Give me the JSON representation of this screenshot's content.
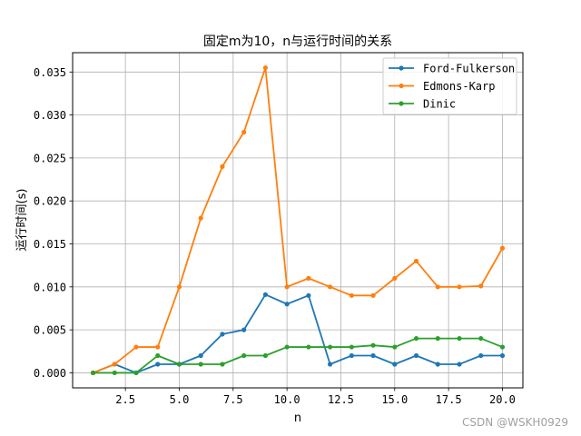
{
  "chart_data": {
    "type": "line",
    "title": "固定m为10，n与运行时间的关系",
    "xlabel": "n",
    "ylabel": "运行时间(s)",
    "xlim": [
      0.05,
      20.95
    ],
    "ylim": [
      -0.00175,
      0.03725
    ],
    "xticks": [
      2.5,
      5.0,
      7.5,
      10.0,
      12.5,
      15.0,
      17.5,
      20.0
    ],
    "xtick_labels": [
      "2.5",
      "5.0",
      "7.5",
      "10.0",
      "12.5",
      "15.0",
      "17.5",
      "20.0"
    ],
    "yticks": [
      0.0,
      0.005,
      0.01,
      0.015,
      0.02,
      0.025,
      0.03,
      0.035
    ],
    "ytick_labels": [
      "0.000",
      "0.005",
      "0.010",
      "0.015",
      "0.020",
      "0.025",
      "0.030",
      "0.035"
    ],
    "grid": true,
    "legend_position": "top-right",
    "x": [
      1,
      2,
      3,
      4,
      5,
      6,
      7,
      8,
      9,
      10,
      11,
      12,
      13,
      14,
      15,
      16,
      17,
      18,
      19,
      20
    ],
    "series": [
      {
        "name": "Ford-Fulkerson",
        "color": "#1f77b4",
        "values": [
          0.0,
          0.001,
          0.0,
          0.001,
          0.001,
          0.002,
          0.0045,
          0.005,
          0.0091,
          0.008,
          0.009,
          0.001,
          0.002,
          0.002,
          0.001,
          0.002,
          0.001,
          0.001,
          0.002,
          0.002
        ]
      },
      {
        "name": "Edmons-Karp",
        "color": "#ff7f0e",
        "values": [
          0.0,
          0.001,
          0.003,
          0.003,
          0.01,
          0.018,
          0.024,
          0.028,
          0.0355,
          0.01,
          0.011,
          0.01,
          0.009,
          0.009,
          0.011,
          0.013,
          0.01,
          0.01,
          0.0101,
          0.0145
        ]
      },
      {
        "name": "Dinic",
        "color": "#2ca02c",
        "values": [
          0.0,
          0.0,
          0.0,
          0.002,
          0.001,
          0.001,
          0.001,
          0.002,
          0.002,
          0.003,
          0.003,
          0.003,
          0.003,
          0.0032,
          0.003,
          0.004,
          0.004,
          0.004,
          0.004,
          0.003
        ]
      }
    ]
  },
  "watermark": "CSDN @WSKH0929"
}
